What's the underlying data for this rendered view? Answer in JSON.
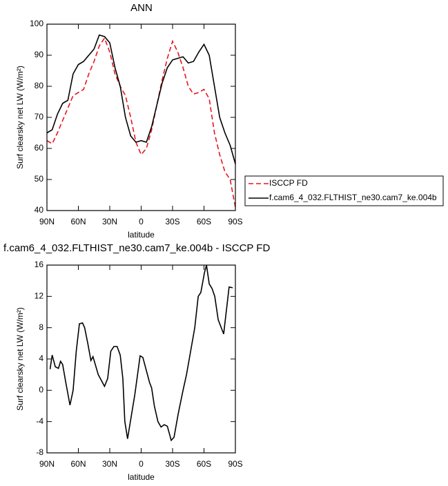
{
  "chart_data": [
    {
      "type": "line",
      "title": "ANN",
      "xlabel": "latitude",
      "ylabel": "Surf clearsky net LW (W/m²)",
      "xlim": [
        90,
        -90
      ],
      "xticks": [
        {
          "value": 90,
          "label": "90N"
        },
        {
          "value": 60,
          "label": "60N"
        },
        {
          "value": 30,
          "label": "30N"
        },
        0,
        {
          "value": -30,
          "label": "30S"
        },
        {
          "value": -60,
          "label": "60S"
        },
        {
          "value": -90,
          "label": "90S"
        }
      ],
      "ylim": [
        40,
        100
      ],
      "yticks": [
        40,
        50,
        60,
        70,
        80,
        90,
        100
      ],
      "legend": "right",
      "x": [
        90,
        85,
        80,
        75,
        70,
        65,
        60,
        55,
        50,
        45,
        40,
        35,
        30,
        25,
        20,
        15,
        10,
        5,
        0,
        -5,
        -10,
        -15,
        -20,
        -25,
        -30,
        -35,
        -40,
        -45,
        -50,
        -55,
        -60,
        -65,
        -70,
        -75,
        -80,
        -85,
        -90
      ],
      "series": [
        {
          "name": "ISCCP FD",
          "color": "#e8141b",
          "dashed": true,
          "values": [
            62.5,
            61.5,
            65,
            69,
            73,
            77,
            78,
            79,
            84,
            88,
            93,
            95.5,
            91,
            84,
            80,
            77,
            70,
            62,
            58,
            60,
            66,
            74,
            82,
            89,
            94.5,
            91,
            86,
            80,
            77.5,
            78,
            79,
            76,
            65,
            58,
            52.5,
            50,
            41
          ]
        },
        {
          "name": "f.cam6_4_032.FLTHIST_ne30.cam7_ke.004b",
          "color": "#000000",
          "dashed": false,
          "values": [
            65,
            66,
            71,
            74.5,
            75.5,
            84,
            87,
            88,
            90,
            92,
            96.5,
            96,
            94,
            86,
            80,
            70,
            64,
            62,
            62.5,
            62,
            67,
            74,
            81,
            86,
            88.5,
            89,
            89.5,
            87.5,
            88,
            91,
            93.5,
            90,
            80,
            70,
            65,
            61,
            55
          ]
        }
      ]
    },
    {
      "type": "line",
      "title": "f.cam6_4_032.FLTHIST_ne30.cam7_ke.004b - ISCCP FD",
      "xlabel": "latitude",
      "ylabel": "Surf clearsky net LW (W/m²)",
      "xlim": [
        90,
        -90
      ],
      "xticks": [
        {
          "value": 90,
          "label": "90N"
        },
        {
          "value": 60,
          "label": "60N"
        },
        {
          "value": 30,
          "label": "30N"
        },
        0,
        {
          "value": -30,
          "label": "30S"
        },
        {
          "value": -60,
          "label": "60S"
        },
        {
          "value": -90,
          "label": "90S"
        }
      ],
      "ylim": [
        -8,
        16
      ],
      "yticks": [
        -8,
        -4,
        0,
        4,
        8,
        12,
        16
      ],
      "x": [
        87,
        85,
        82,
        79,
        77,
        75,
        72,
        68,
        65,
        62,
        59,
        56,
        54,
        51,
        48,
        46,
        41,
        35,
        32,
        29,
        26,
        23,
        20,
        17.5,
        15.6,
        13,
        6,
        1,
        -1.6,
        -5,
        -8,
        -10,
        -12.6,
        -16,
        -19,
        -22,
        -25,
        -28.7,
        -31.4,
        -35.4,
        -40,
        -43.3,
        -46.6,
        -51.2,
        -54.5,
        -57,
        -60.4,
        -62.4,
        -65,
        -67.7,
        -70.3,
        -73.6,
        -78.8,
        -84,
        -87.4
      ],
      "series": [
        {
          "color": "#000000",
          "dashed": false,
          "values": [
            2.7,
            4.5,
            3,
            2.8,
            3.7,
            3.3,
            1,
            -1.9,
            0,
            5,
            8.5,
            8.6,
            8,
            6,
            3.8,
            4.3,
            2,
            0.5,
            1.5,
            5,
            5.6,
            5.6,
            4.5,
            1.5,
            -4,
            -6.2,
            -0.5,
            4.4,
            4.2,
            2.5,
            1,
            0.3,
            -2,
            -4,
            -4.7,
            -4.4,
            -4.6,
            -6.4,
            -6,
            -3,
            0,
            2,
            4.5,
            8,
            12,
            12.5,
            15,
            16,
            13.6,
            13,
            12,
            9,
            7.2,
            13.2,
            13.1
          ]
        }
      ]
    }
  ]
}
